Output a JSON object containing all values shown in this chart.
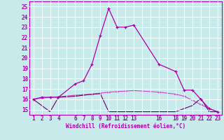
{
  "xlabel": "Windchill (Refroidissement éolien,°C)",
  "bg_color": "#c8eaea",
  "grid_color": "#ffffff",
  "line_color1": "#aa00aa",
  "line_color2": "#cc44cc",
  "line_color3": "#660066",
  "ylim": [
    14.5,
    25.5
  ],
  "yticks": [
    15,
    16,
    17,
    18,
    19,
    20,
    21,
    22,
    23,
    24,
    25
  ],
  "xlim": [
    0.5,
    23.5
  ],
  "xtick_positions": [
    1,
    2,
    3,
    4,
    6,
    7,
    8,
    9,
    10,
    11,
    12,
    13,
    16,
    18,
    19,
    20,
    21,
    22,
    23
  ],
  "xtick_labels": [
    "1",
    "2",
    "3",
    "4",
    "6",
    "7",
    "8",
    "9",
    "10",
    "11",
    "12",
    "13",
    "16",
    "18",
    "19",
    "20",
    "21",
    "22",
    "23"
  ],
  "series1_x": [
    1,
    2,
    3,
    4,
    6,
    7,
    8,
    9,
    10,
    11,
    12,
    13,
    16,
    18,
    19,
    20,
    21,
    22,
    23
  ],
  "series1_y": [
    16.0,
    16.2,
    16.2,
    16.2,
    17.5,
    17.8,
    19.4,
    22.2,
    24.8,
    23.0,
    23.0,
    23.2,
    19.4,
    18.7,
    16.9,
    16.9,
    16.0,
    15.1,
    14.8
  ],
  "series2_x": [
    1,
    2,
    3,
    4,
    6,
    7,
    8,
    9,
    10,
    11,
    12,
    13,
    16,
    18,
    19,
    20,
    21,
    22,
    23
  ],
  "series2_y": [
    16.0,
    16.1,
    16.2,
    16.25,
    16.4,
    16.45,
    16.5,
    16.6,
    16.7,
    16.75,
    16.8,
    16.85,
    16.7,
    16.5,
    16.3,
    15.9,
    15.5,
    15.1,
    14.8
  ],
  "series3_x": [
    1,
    3,
    4,
    6,
    7,
    8,
    9,
    10,
    13,
    16,
    18,
    19,
    20,
    21,
    22,
    23
  ],
  "series3_y": [
    16.0,
    14.8,
    16.2,
    16.3,
    16.4,
    16.5,
    16.55,
    14.8,
    14.8,
    14.8,
    14.8,
    15.1,
    15.4,
    16.1,
    14.8,
    14.8
  ]
}
